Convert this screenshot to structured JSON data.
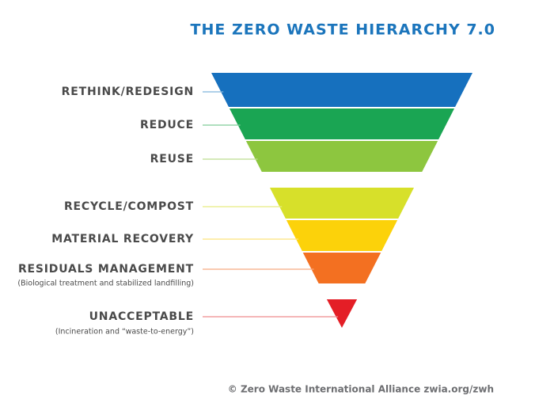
{
  "header": {
    "title": "THE ZERO WASTE HIERARCHY 7.0"
  },
  "levels": [
    {
      "label": "RETHINK/REDESIGN"
    },
    {
      "label": "REDUCE"
    },
    {
      "label": "REUSE"
    },
    {
      "label": "RECYCLE/COMPOST"
    },
    {
      "label": "MATERIAL RECOVERY"
    },
    {
      "label": "RESIDUALS MANAGEMENT",
      "sublabel": "(Biological treatment and stabilized landfilling)"
    },
    {
      "label": "UNACCEPTABLE",
      "sublabel": "(Incineration and “waste-to-energy”)"
    }
  ],
  "footer": {
    "credit": "© Zero Waste International Alliance zwia.org/zwh"
  }
}
